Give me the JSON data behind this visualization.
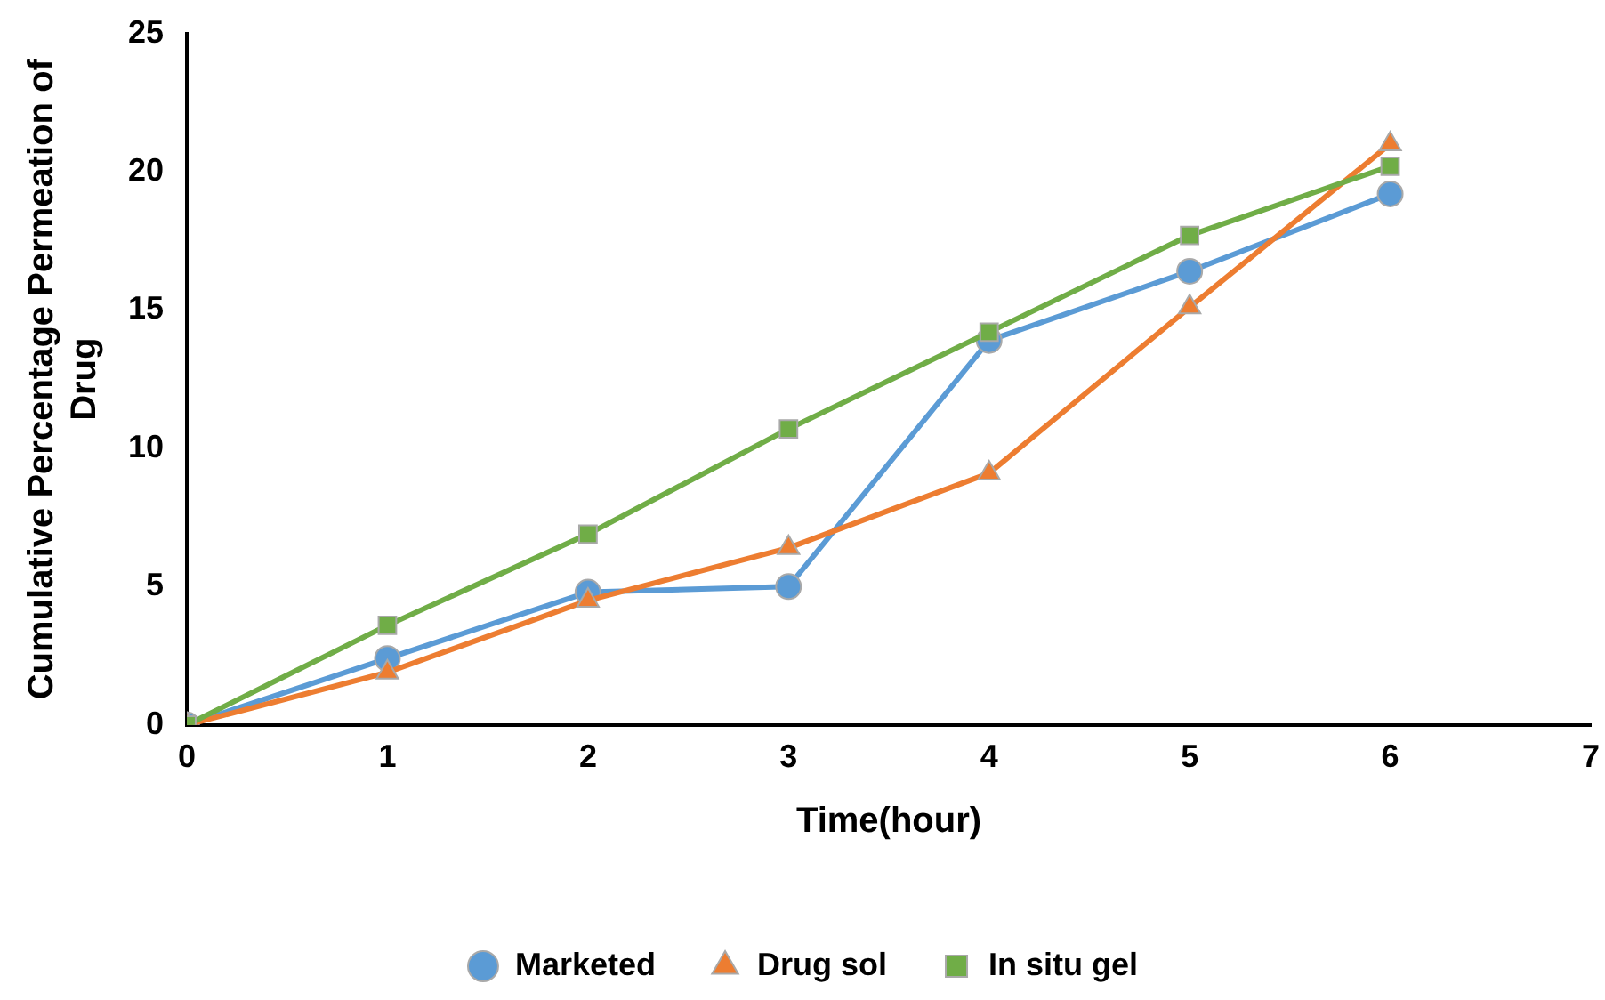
{
  "chart_data": {
    "type": "line",
    "xlabel": "Time(hour)",
    "ylabel": "Cumulative Percentage Permeation of Drug",
    "x": [
      0,
      1,
      2,
      3,
      4,
      5,
      6
    ],
    "xlim": [
      0,
      7
    ],
    "xticks": [
      0,
      1,
      2,
      3,
      4,
      5,
      6,
      7
    ],
    "ylim": [
      0,
      25
    ],
    "yticks": [
      0,
      5,
      10,
      15,
      20,
      25
    ],
    "grid": false,
    "legend": "bottom",
    "line_style": "solid",
    "series": [
      {
        "name": "Marketed",
        "color": "#5b9bd5",
        "marker": "circle",
        "values": [
          0,
          2.4,
          4.8,
          5.0,
          13.9,
          16.4,
          19.2
        ]
      },
      {
        "name": "Drug sol",
        "color": "#ed7d31",
        "marker": "triangle",
        "values": [
          0,
          1.9,
          4.5,
          6.4,
          9.1,
          15.1,
          21.0
        ]
      },
      {
        "name": "In situ gel",
        "color": "#70ad47",
        "marker": "square",
        "values": [
          0,
          3.6,
          6.9,
          10.7,
          14.2,
          17.7,
          20.2
        ]
      }
    ]
  }
}
